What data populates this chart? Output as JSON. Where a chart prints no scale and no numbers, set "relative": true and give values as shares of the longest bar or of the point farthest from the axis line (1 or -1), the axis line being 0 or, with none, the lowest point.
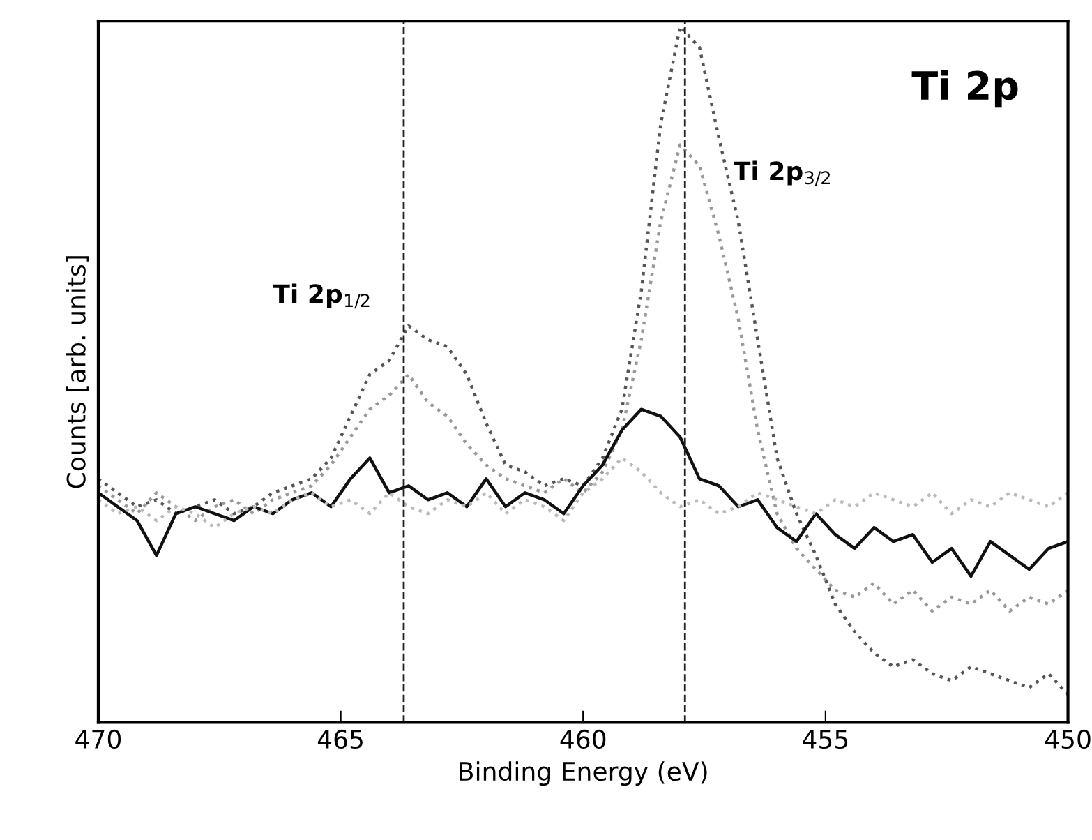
{
  "chart_data": {
    "type": "line",
    "title": "Ti 2p",
    "xlabel": "Binding Energy (eV)",
    "ylabel": "Counts [arb. units]",
    "relative": true,
    "grid": false,
    "xlim": [
      470,
      450
    ],
    "xticks": [
      470,
      465,
      460,
      455,
      450
    ],
    "x": [
      470.0,
      469.6,
      469.2,
      468.8,
      468.4,
      468.0,
      467.6,
      467.2,
      466.8,
      466.4,
      466.0,
      465.6,
      465.2,
      464.8,
      464.4,
      464.0,
      463.6,
      463.2,
      462.8,
      462.4,
      462.0,
      461.6,
      461.2,
      460.8,
      460.4,
      460.0,
      459.6,
      459.2,
      458.8,
      458.4,
      458.0,
      457.6,
      457.2,
      456.8,
      456.4,
      456.0,
      455.6,
      455.2,
      454.8,
      454.4,
      454.0,
      453.6,
      453.2,
      452.8,
      452.4,
      452.0,
      451.6,
      451.2,
      450.8,
      450.4,
      450.0
    ],
    "series": [
      {
        "color": "#555555",
        "line_style": "dotted",
        "values": [
          0.35,
          0.33,
          0.31,
          0.32,
          0.3,
          0.31,
          0.32,
          0.3,
          0.31,
          0.33,
          0.34,
          0.35,
          0.38,
          0.44,
          0.5,
          0.52,
          0.57,
          0.55,
          0.54,
          0.5,
          0.43,
          0.37,
          0.36,
          0.34,
          0.35,
          0.34,
          0.38,
          0.45,
          0.62,
          0.86,
          1.0,
          0.97,
          0.84,
          0.72,
          0.55,
          0.38,
          0.3,
          0.24,
          0.17,
          0.13,
          0.1,
          0.08,
          0.09,
          0.07,
          0.06,
          0.08,
          0.07,
          0.06,
          0.05,
          0.07,
          0.04
        ]
      },
      {
        "color": "#999999",
        "line_style": "dotted",
        "values": [
          0.34,
          0.32,
          0.3,
          0.33,
          0.31,
          0.29,
          0.31,
          0.32,
          0.3,
          0.32,
          0.33,
          0.34,
          0.37,
          0.41,
          0.45,
          0.47,
          0.5,
          0.46,
          0.44,
          0.4,
          0.37,
          0.35,
          0.34,
          0.33,
          0.35,
          0.33,
          0.36,
          0.42,
          0.55,
          0.72,
          0.83,
          0.8,
          0.7,
          0.58,
          0.42,
          0.3,
          0.25,
          0.22,
          0.19,
          0.18,
          0.2,
          0.17,
          0.19,
          0.16,
          0.18,
          0.17,
          0.19,
          0.16,
          0.18,
          0.17,
          0.19
        ]
      },
      {
        "color": "#111111",
        "line_style": "solid",
        "values": [
          0.33,
          0.31,
          0.29,
          0.24,
          0.3,
          0.31,
          0.3,
          0.29,
          0.31,
          0.3,
          0.32,
          0.33,
          0.31,
          0.35,
          0.38,
          0.33,
          0.34,
          0.32,
          0.33,
          0.31,
          0.35,
          0.31,
          0.33,
          0.32,
          0.3,
          0.34,
          0.37,
          0.42,
          0.45,
          0.44,
          0.41,
          0.35,
          0.34,
          0.31,
          0.32,
          0.28,
          0.26,
          0.3,
          0.27,
          0.25,
          0.28,
          0.26,
          0.27,
          0.23,
          0.25,
          0.21,
          0.26,
          0.24,
          0.22,
          0.25,
          0.26
        ]
      },
      {
        "color": "#bbbbbb",
        "line_style": "dotted",
        "values": [
          0.32,
          0.3,
          0.31,
          0.29,
          0.31,
          0.3,
          0.28,
          0.3,
          0.31,
          0.3,
          0.32,
          0.33,
          0.31,
          0.32,
          0.3,
          0.33,
          0.31,
          0.3,
          0.32,
          0.31,
          0.33,
          0.3,
          0.32,
          0.31,
          0.29,
          0.33,
          0.35,
          0.38,
          0.36,
          0.33,
          0.31,
          0.32,
          0.3,
          0.31,
          0.33,
          0.32,
          0.31,
          0.3,
          0.32,
          0.31,
          0.33,
          0.32,
          0.31,
          0.33,
          0.3,
          0.32,
          0.31,
          0.33,
          0.32,
          0.31,
          0.33
        ]
      }
    ],
    "ref_lines": [
      {
        "axis": "x",
        "value": 463.7,
        "line_style": "dashed",
        "color": "#222222"
      },
      {
        "axis": "x",
        "value": 457.9,
        "line_style": "dashed",
        "color": "#222222"
      }
    ],
    "annotations": [
      "Ti 2p$_{1/2}$",
      "Ti 2p$_{3/2}$"
    ]
  }
}
